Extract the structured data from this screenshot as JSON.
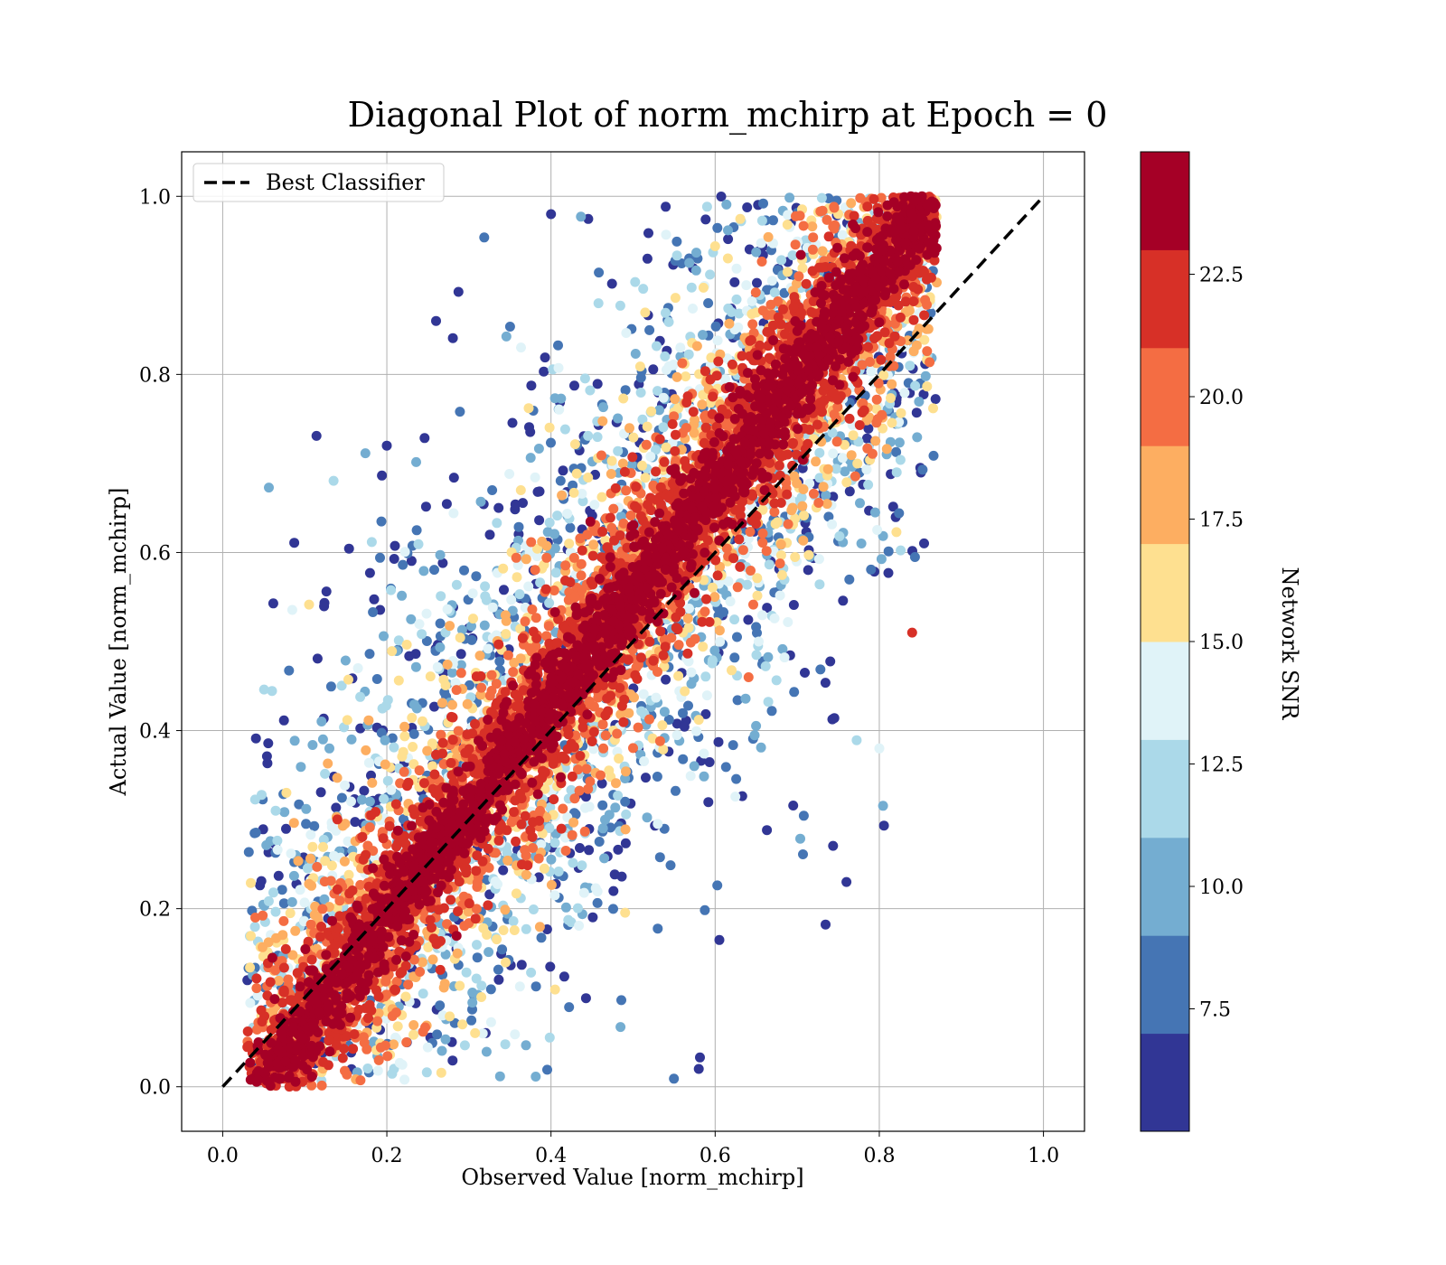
{
  "chart_data": {
    "type": "scatter",
    "title": "Diagonal Plot of norm_mchirp at Epoch = 0",
    "xlabel": "Observed Value [norm_mchirp]",
    "ylabel": "Actual Value [norm_mchirp]",
    "xlim": [
      -0.05,
      1.05
    ],
    "ylim": [
      -0.05,
      1.05
    ],
    "x_ticks": [
      "0.0",
      "0.2",
      "0.4",
      "0.6",
      "0.8",
      "1.0"
    ],
    "y_ticks": [
      "0.0",
      "0.2",
      "0.4",
      "0.6",
      "0.8",
      "1.0"
    ],
    "grid": true,
    "legend": {
      "position": "top-left",
      "entries": [
        "Best Classifier"
      ]
    },
    "reference_line": {
      "name": "Best Classifier",
      "style": "dashed",
      "color": "#000000",
      "x": [
        0.0,
        1.0
      ],
      "y": [
        0.0,
        1.0
      ]
    },
    "colorbar": {
      "label": "Network SNR",
      "range": [
        5.0,
        25.0
      ],
      "ticks": [
        "7.5",
        "10.0",
        "12.5",
        "15.0",
        "17.5",
        "20.0",
        "22.5"
      ],
      "bands": [
        "#313695",
        "#4575b4",
        "#74add1",
        "#abd9e9",
        "#e0f3f8",
        "#fee090",
        "#fdae61",
        "#f46d43",
        "#d73027",
        "#a50026"
      ]
    },
    "series": [
      {
        "description_type": "scatter",
        "point_count_approx": 10000,
        "x_range": [
          0.03,
          0.87
        ],
        "y_range": [
          0.0,
          1.0
        ],
        "pattern": "points concentrated along y = x; high-SNR (red) points tight to diagonal, low-SNR (blue) points widely scattered",
        "sample_points": [
          {
            "x": 0.4,
            "y": 0.98,
            "snr": 6
          },
          {
            "x": 0.26,
            "y": 0.86,
            "snr": 6
          },
          {
            "x": 0.2,
            "y": 0.72,
            "snr": 6
          },
          {
            "x": 0.76,
            "y": 0.23,
            "snr": 6
          },
          {
            "x": 0.58,
            "y": 0.02,
            "snr": 6
          },
          {
            "x": 0.8,
            "y": 0.38,
            "snr": 13
          },
          {
            "x": 0.84,
            "y": 0.51,
            "snr": 21
          },
          {
            "x": 0.81,
            "y": 0.99,
            "snr": 24
          },
          {
            "x": 0.08,
            "y": 0.01,
            "snr": 23
          },
          {
            "x": 0.13,
            "y": 0.38,
            "snr": 9
          }
        ]
      }
    ]
  }
}
